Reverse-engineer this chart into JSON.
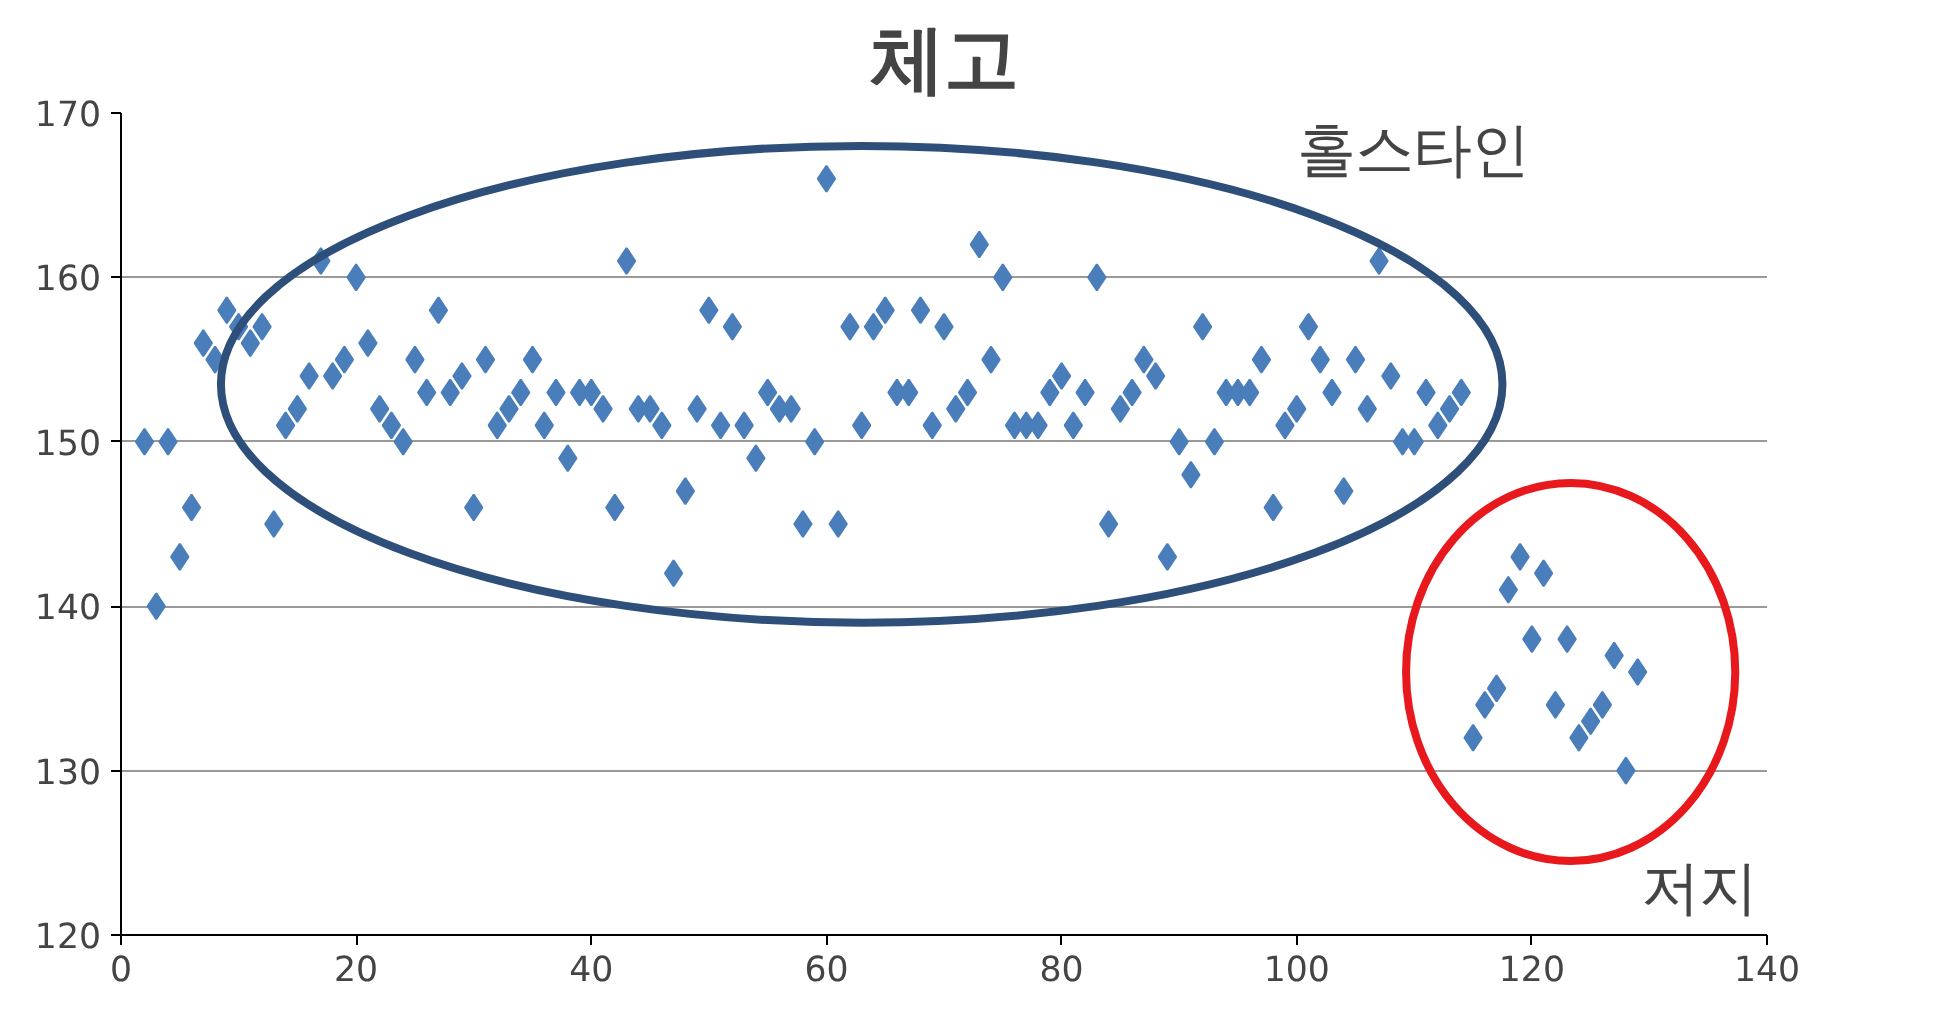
{
  "chart_data": {
    "type": "scatter",
    "title": "체고",
    "x": [
      2,
      3,
      4,
      5,
      6,
      7,
      8,
      9,
      10,
      11,
      12,
      13,
      14,
      15,
      16,
      17,
      18,
      19,
      20,
      21,
      22,
      23,
      24,
      25,
      26,
      27,
      28,
      29,
      30,
      31,
      32,
      33,
      34,
      35,
      36,
      37,
      38,
      39,
      40,
      41,
      42,
      43,
      44,
      45,
      46,
      47,
      48,
      49,
      50,
      51,
      52,
      53,
      54,
      55,
      56,
      57,
      58,
      59,
      60,
      61,
      62,
      63,
      64,
      65,
      66,
      67,
      68,
      69,
      70,
      71,
      72,
      73,
      74,
      75,
      76,
      77,
      78,
      79,
      80,
      81,
      82,
      83,
      84,
      85,
      86,
      87,
      88,
      89,
      90,
      91,
      92,
      93,
      94,
      95,
      96,
      97,
      98,
      99,
      100,
      101,
      102,
      103,
      104,
      105,
      106,
      107,
      108,
      109,
      110,
      111,
      112,
      113,
      114,
      115,
      116,
      117,
      118,
      119,
      120,
      121,
      122,
      123,
      124,
      125,
      126,
      127,
      128,
      129
    ],
    "series": [
      {
        "color": "#4a7ebb",
        "values": [
          150,
          140,
          150,
          143,
          146,
          156,
          155,
          158,
          157,
          156,
          157,
          145,
          151,
          152,
          154,
          161,
          154,
          155,
          160,
          156,
          152,
          151,
          150,
          155,
          153,
          158,
          153,
          154,
          146,
          155,
          151,
          152,
          153,
          155,
          151,
          153,
          149,
          153,
          153,
          152,
          146,
          161,
          152,
          152,
          151,
          142,
          147,
          152,
          158,
          151,
          157,
          151,
          149,
          153,
          152,
          152,
          145,
          150,
          166,
          145,
          157,
          151,
          157,
          158,
          153,
          153,
          158,
          151,
          157,
          152,
          153,
          162,
          155,
          160,
          151,
          151,
          151,
          153,
          154,
          151,
          153,
          160,
          145,
          152,
          153,
          155,
          154,
          143,
          150,
          148,
          157,
          150,
          153,
          153,
          153,
          155,
          146,
          151,
          152,
          157,
          155,
          153,
          147,
          155,
          152,
          161,
          154,
          150,
          150,
          153,
          151,
          152,
          153,
          132,
          134,
          135,
          141,
          143,
          138,
          142,
          134,
          138,
          132,
          133,
          134,
          137,
          130,
          136
        ]
      }
    ],
    "annotations": [
      "홀스타인",
      "저지"
    ],
    "xlim": [
      0,
      140
    ],
    "xticks": [
      0,
      20,
      40,
      60,
      80,
      100,
      120,
      140
    ],
    "ylim": [
      120,
      170
    ],
    "yticks": [
      120,
      130,
      140,
      150,
      160,
      170
    ],
    "grid": "y",
    "marker": "diamond"
  }
}
